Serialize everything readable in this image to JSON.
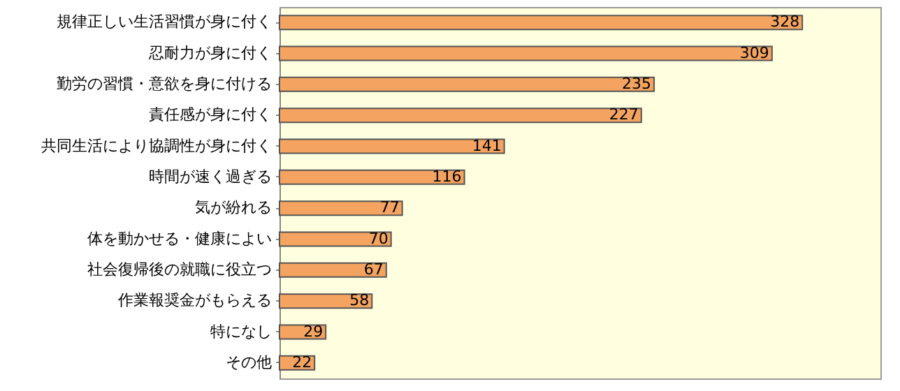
{
  "chart_data": {
    "type": "bar",
    "orientation": "horizontal",
    "categories": [
      "規律正しい生活習慣が身に付く",
      "忍耐力が身に付く",
      "勤労の習慣・意欲を身に付ける",
      "責任感が身に付く",
      "共同生活により協調性が身に付く",
      "時間が速く過ぎる",
      "気が紛れる",
      "体を動かせる・健康によい",
      "社会復帰後の就職に役立つ",
      "作業報奨金がもらえる",
      "特になし",
      "その他"
    ],
    "values": [
      328,
      309,
      235,
      227,
      141,
      116,
      77,
      70,
      67,
      58,
      29,
      22
    ],
    "color": "#f4a460",
    "data_labels": true
  }
}
